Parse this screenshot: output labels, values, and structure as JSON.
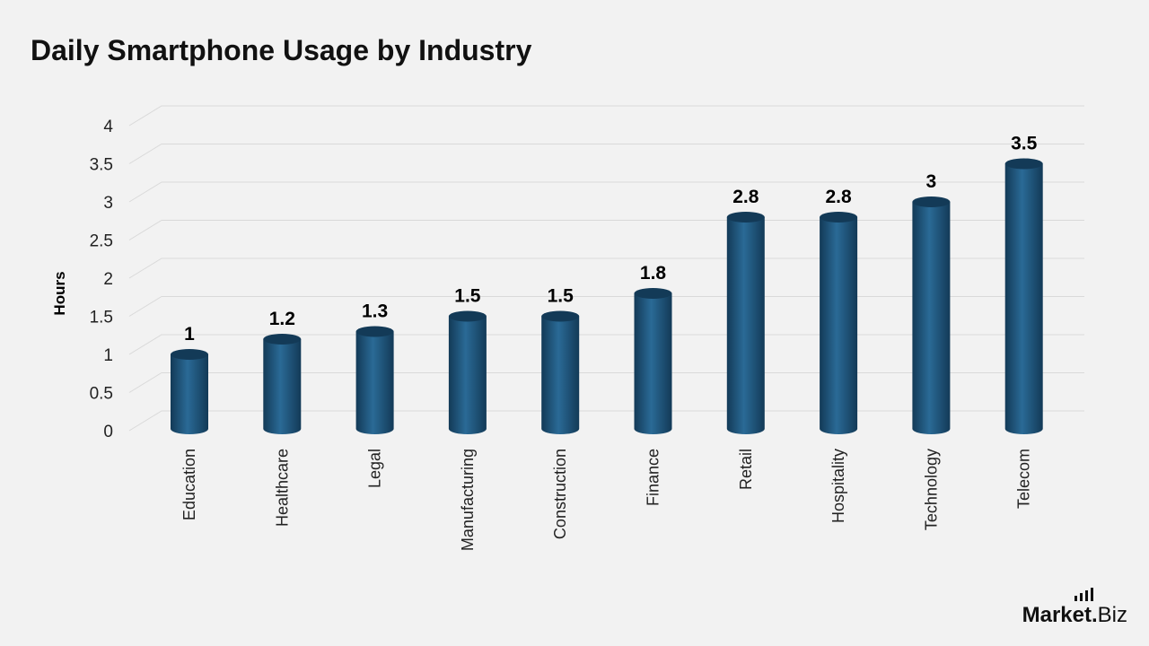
{
  "brand": {
    "name_bold": "Market",
    "dot": ".",
    "name_regular": "Biz",
    "logo_icon": "signal-bars-icon"
  },
  "colors": {
    "background": "#f2f2f2",
    "bar": "#1b4f74",
    "bar_dark": "#133a57",
    "bar_light": "#2a6a96",
    "grid": "#d9d9d9"
  },
  "chart_data": {
    "type": "bar",
    "title": "Daily Smartphone Usage by Industry",
    "xlabel": "",
    "ylabel": "Hours",
    "ylim": [
      0,
      4
    ],
    "yticks": [
      0,
      0.5,
      1,
      1.5,
      2,
      2.5,
      3,
      3.5,
      4
    ],
    "grid": true,
    "legend": "none",
    "categories": [
      "Education",
      "Healthcare",
      "Legal",
      "Manufacturing",
      "Construction",
      "Finance",
      "Retail",
      "Hospitality",
      "Technology",
      "Telecom"
    ],
    "values": [
      1,
      1.2,
      1.3,
      1.5,
      1.5,
      1.8,
      2.8,
      2.8,
      3,
      3.5
    ],
    "data_labels": [
      "1",
      "1.2",
      "1.3",
      "1.5",
      "1.5",
      "1.8",
      "2.8",
      "2.8",
      "3",
      "3.5"
    ]
  }
}
